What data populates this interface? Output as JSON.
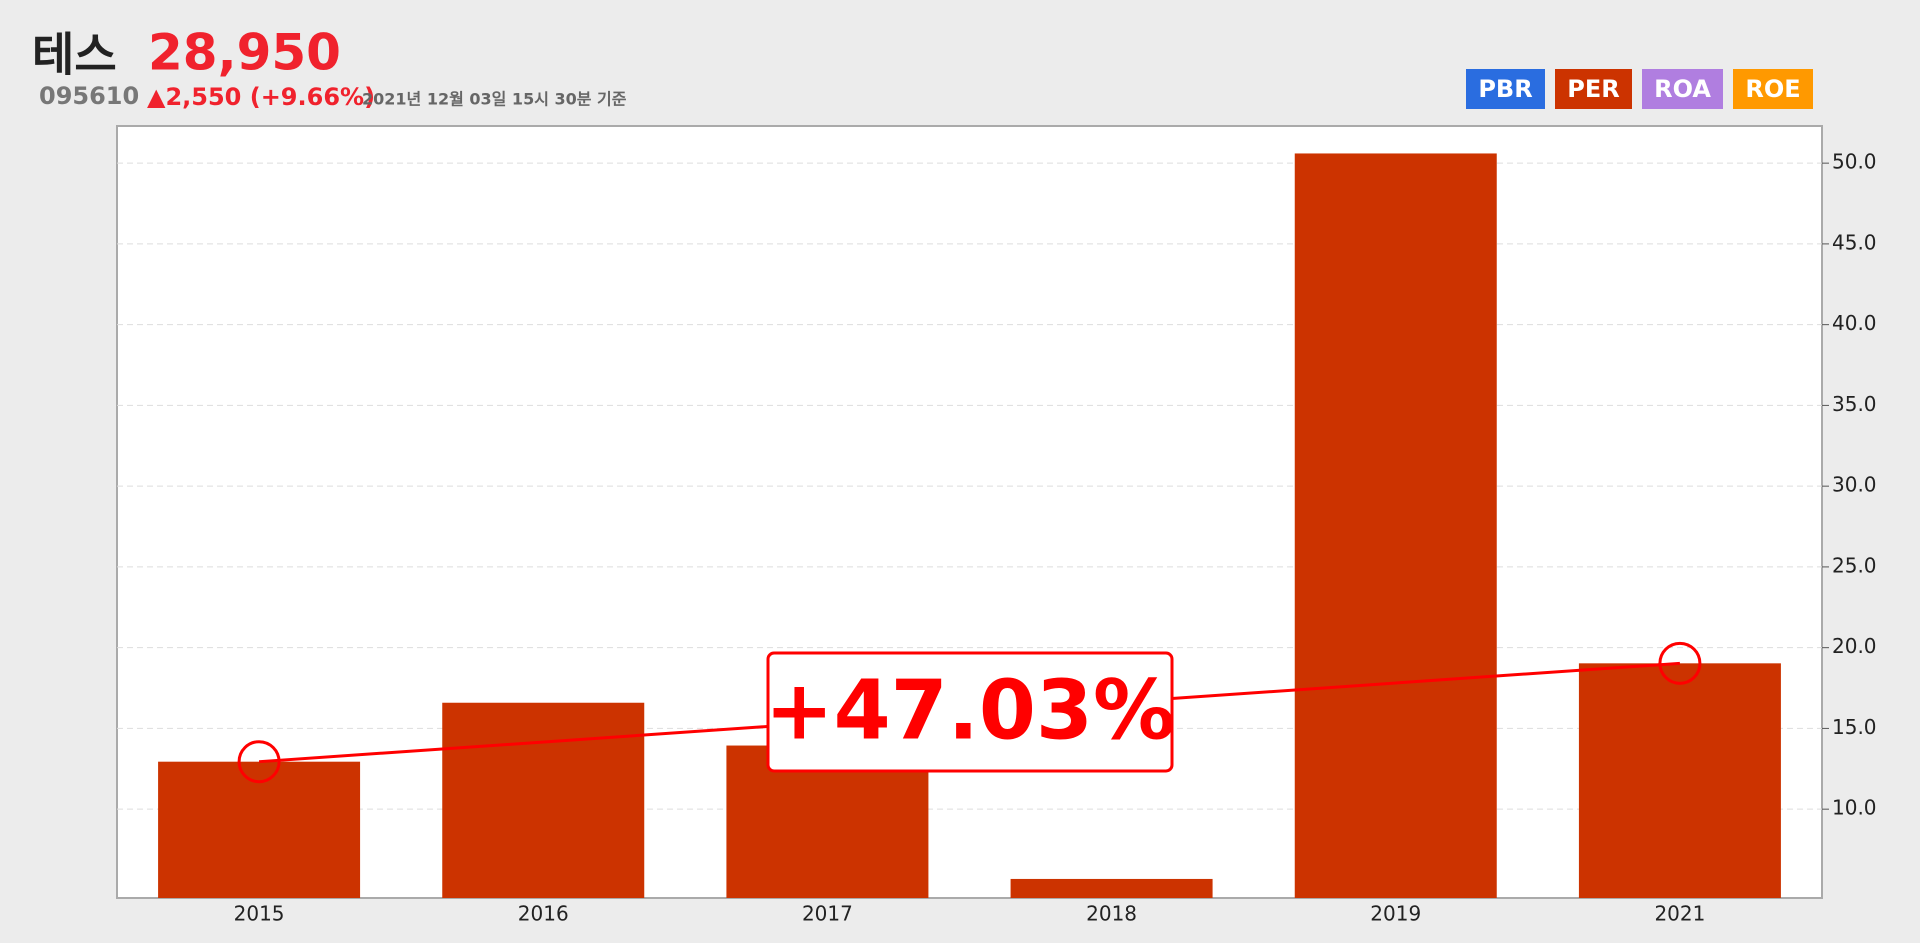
{
  "header": {
    "name": "테스",
    "price": "28,950",
    "code": "095610",
    "change": "▲2,550 (+9.66%)",
    "timestamp": "2021년 12월 03일 15시 30분 기준"
  },
  "buttons": [
    {
      "label": "PBR",
      "color": "#2a6de0"
    },
    {
      "label": "PER",
      "color": "#cc3300"
    },
    {
      "label": "ROA",
      "color": "#b07ee0"
    },
    {
      "label": "ROE",
      "color": "#ff9900"
    }
  ],
  "chart_data": {
    "type": "bar",
    "categories": [
      "2015",
      "2016",
      "2017",
      "2018",
      "2019",
      "2021"
    ],
    "values": [
      12.94,
      16.59,
      13.94,
      5.68,
      50.6,
      19.03
    ],
    "color": "#cc3300",
    "ylim": [
      4.5,
      52.3
    ],
    "yticks": [
      {
        "value": 10,
        "label": "10.0"
      },
      {
        "value": 15,
        "label": "15.0"
      },
      {
        "value": 20,
        "label": "20.0"
      },
      {
        "value": 25,
        "label": "25.0"
      },
      {
        "value": 30,
        "label": "30.0"
      },
      {
        "value": 35,
        "label": "35.0"
      },
      {
        "value": 40,
        "label": "40.0"
      },
      {
        "value": 45,
        "label": "45.0"
      },
      {
        "value": 50,
        "label": "50.0"
      }
    ],
    "grid": true,
    "annotation": {
      "text": "+47.03%",
      "color": "#ff0000"
    }
  }
}
